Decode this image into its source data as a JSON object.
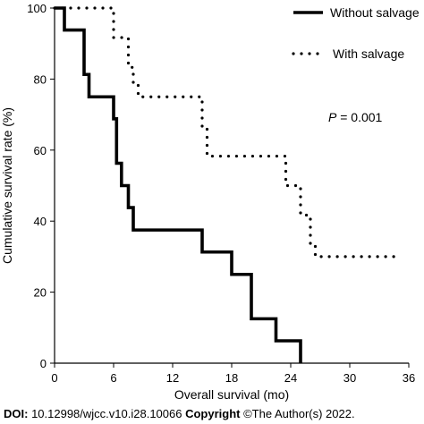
{
  "chart_data": {
    "type": "line",
    "xlabel": "Overall survival (mo)",
    "ylabel": "Cumulative survival rate (%)",
    "xlim": [
      0,
      36
    ],
    "ylim": [
      0,
      100
    ],
    "xticks": [
      0,
      6,
      12,
      18,
      24,
      30,
      36
    ],
    "yticks": [
      0,
      20,
      40,
      60,
      80,
      100
    ],
    "grid": false,
    "legend_position": "top-right",
    "annotation": {
      "italic": "P",
      "rest": " = 0.001"
    },
    "series": [
      {
        "name": "Without salvage",
        "style": "solid",
        "color": "#000000",
        "x": [
          0,
          1,
          1,
          3,
          3,
          3.5,
          3.5,
          6,
          6,
          6.3,
          6.3,
          6.8,
          6.8,
          7.5,
          7.5,
          8,
          8,
          15,
          15,
          18,
          18,
          20,
          20,
          22.5,
          22.5,
          25,
          25
        ],
        "y": [
          100,
          100,
          93.8,
          93.8,
          81.3,
          81.3,
          75,
          75,
          68.8,
          68.8,
          56.3,
          56.3,
          50,
          50,
          43.8,
          43.8,
          37.5,
          37.5,
          31.3,
          31.3,
          25,
          25,
          12.5,
          12.5,
          6.3,
          6.3,
          0
        ]
      },
      {
        "name": "With salvage",
        "style": "dotted",
        "color": "#000000",
        "x": [
          0,
          6,
          6,
          7.5,
          7.5,
          8,
          8,
          8.5,
          8.5,
          15,
          15,
          15.5,
          15.5,
          23.5,
          23.5,
          25,
          25,
          26,
          26,
          26.5,
          26.5,
          35
        ],
        "y": [
          100,
          100,
          91.7,
          91.7,
          83.3,
          83.3,
          79,
          79,
          75,
          75,
          66.7,
          66.7,
          58.3,
          58.3,
          50,
          50,
          41.7,
          41.7,
          33.3,
          33.3,
          30,
          30
        ]
      }
    ]
  },
  "footer": {
    "doi_label": "DOI:",
    "doi_value": " 10.12998/wjcc.v10.i28.10066 ",
    "copyright_label": "Copyright",
    "copyright_value": " ©The Author(s) 2022."
  }
}
